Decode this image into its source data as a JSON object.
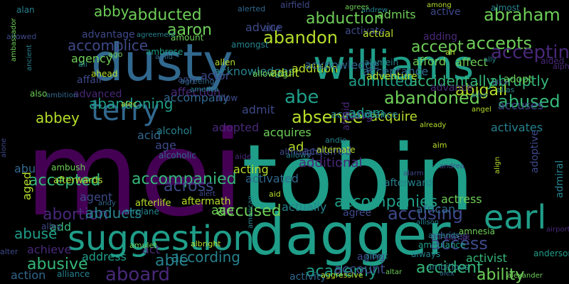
{
  "background": "#000000",
  "palette": {
    "p": "#440154",
    "i": "#482878",
    "b": "#3e4989",
    "c": "#31688e",
    "t": "#26828e",
    "g": "#1f9e89",
    "m": "#35b779",
    "y": "#6ece58",
    "l": "#b5de2b"
  },
  "words": [
    {
      "text": "mei",
      "c": "p"
    },
    {
      "text": "tobin",
      "c": "g"
    },
    {
      "text": "dusty",
      "c": "c"
    },
    {
      "text": "williams",
      "c": "g"
    },
    {
      "text": "dagger",
      "c": "g"
    },
    {
      "text": "suggestion",
      "c": "g"
    },
    {
      "text": "terry",
      "c": "c"
    },
    {
      "text": "earl",
      "c": "g"
    },
    {
      "text": "abducted",
      "c": "y"
    },
    {
      "text": "abduction",
      "c": "y"
    },
    {
      "text": "abraham",
      "c": "y"
    },
    {
      "text": "aaron",
      "c": "y"
    },
    {
      "text": "abandon",
      "c": "l"
    },
    {
      "text": "accepts",
      "c": "y"
    },
    {
      "text": "accepting",
      "c": "i"
    },
    {
      "text": "abe",
      "c": "g"
    },
    {
      "text": "absence",
      "c": "l"
    },
    {
      "text": "abandoned",
      "c": "y"
    },
    {
      "text": "abigail",
      "c": "l"
    },
    {
      "text": "abused",
      "c": "m"
    },
    {
      "text": "abbey",
      "c": "l"
    },
    {
      "text": "abruptly",
      "c": "m"
    },
    {
      "text": "accidentally",
      "c": "m"
    },
    {
      "text": "acquire",
      "c": "l"
    },
    {
      "text": "accompanies",
      "c": "g"
    },
    {
      "text": "accusing",
      "c": "b"
    },
    {
      "text": "accepted",
      "c": "m"
    },
    {
      "text": "abortion",
      "c": "i"
    },
    {
      "text": "accompanied",
      "c": "m"
    },
    {
      "text": "abandoning",
      "c": "g"
    },
    {
      "text": "abuse",
      "c": "g"
    },
    {
      "text": "abducts",
      "c": "t"
    },
    {
      "text": "accused",
      "c": "y"
    },
    {
      "text": "abusive",
      "c": "m"
    },
    {
      "text": "able",
      "c": "t"
    },
    {
      "text": "access",
      "c": "b"
    },
    {
      "text": "academy",
      "c": "g"
    },
    {
      "text": "aboard",
      "c": "i"
    },
    {
      "text": "accident",
      "c": "m"
    },
    {
      "text": "ability",
      "c": "y"
    },
    {
      "text": "according",
      "c": "t"
    },
    {
      "text": "abby",
      "c": "y"
    },
    {
      "text": "accept",
      "c": "y"
    },
    {
      "text": "acknowledges",
      "c": "t"
    },
    {
      "text": "abu",
      "c": "c"
    },
    {
      "text": "accomplice",
      "c": "b"
    },
    {
      "text": "accompany",
      "c": "c"
    },
    {
      "text": "acquires",
      "c": "y"
    },
    {
      "text": "across",
      "c": "b"
    },
    {
      "text": "acid",
      "c": "c"
    },
    {
      "text": "actress",
      "c": "y"
    },
    {
      "text": "addition",
      "c": "l"
    },
    {
      "text": "activates",
      "c": "t"
    },
    {
      "text": "activated",
      "c": "c"
    },
    {
      "text": "acting",
      "c": "l"
    },
    {
      "text": "acquired",
      "c": "b"
    },
    {
      "text": "accuses",
      "c": "b"
    },
    {
      "text": "adopted",
      "c": "i"
    },
    {
      "text": "additional",
      "c": "i"
    },
    {
      "text": "acknowledge",
      "c": "c"
    },
    {
      "text": "ad",
      "c": "l"
    },
    {
      "text": "admitted",
      "c": "g"
    },
    {
      "text": "actor",
      "c": "b"
    },
    {
      "text": "aang",
      "c": "i"
    },
    {
      "text": "adam",
      "c": "g"
    },
    {
      "text": "add",
      "c": "m"
    },
    {
      "text": "admit",
      "c": "b"
    },
    {
      "text": "achieve",
      "c": "i"
    },
    {
      "text": "action",
      "c": "c"
    },
    {
      "text": "account",
      "c": "b"
    },
    {
      "text": "address",
      "c": "g"
    },
    {
      "text": "activist",
      "c": "m"
    },
    {
      "text": "act",
      "c": "i"
    },
    {
      "text": "actually",
      "c": "t"
    },
    {
      "text": "ace",
      "c": "y"
    },
    {
      "text": "admits",
      "c": "y"
    },
    {
      "text": "active",
      "c": "b"
    },
    {
      "text": "activate",
      "c": "b"
    },
    {
      "text": "acceptance",
      "c": "c"
    },
    {
      "text": "adopt",
      "c": "y"
    },
    {
      "text": "affect",
      "c": "y"
    },
    {
      "text": "afford",
      "c": "y"
    },
    {
      "text": "advance",
      "c": "i"
    },
    {
      "text": "advice",
      "c": "b"
    },
    {
      "text": "actual",
      "c": "l"
    },
    {
      "text": "advantage",
      "c": "b"
    },
    {
      "text": "agency",
      "c": "y"
    },
    {
      "text": "adding",
      "c": "i"
    },
    {
      "text": "adult",
      "c": "l"
    },
    {
      "text": "adventure",
      "c": "l"
    },
    {
      "text": "affection",
      "c": "i"
    },
    {
      "text": "african",
      "c": "c"
    },
    {
      "text": "activity",
      "c": "c"
    },
    {
      "text": "acquaintance",
      "c": "t"
    },
    {
      "text": "afterward",
      "c": "t"
    },
    {
      "text": "admiral",
      "c": "t"
    },
    {
      "text": "adoptive",
      "c": "b"
    },
    {
      "text": "aged",
      "c": "l"
    },
    {
      "text": "agent",
      "c": "b"
    },
    {
      "text": "age",
      "c": "b"
    },
    {
      "text": "advises",
      "c": "b"
    },
    {
      "text": "aftermath",
      "c": "l"
    },
    {
      "text": "afterlife",
      "c": "l"
    },
    {
      "text": "afterwards",
      "c": "l"
    },
    {
      "text": "advanced",
      "c": "i"
    },
    {
      "text": "affair",
      "c": "b"
    },
    {
      "text": "afraid",
      "c": "i"
    },
    {
      "text": "aging",
      "c": "b"
    },
    {
      "text": "agree",
      "c": "b"
    },
    {
      "text": "ahead",
      "c": "l"
    },
    {
      "text": "alcoholic",
      "c": "c"
    },
    {
      "text": "alcohol",
      "c": "t"
    },
    {
      "text": "alice",
      "c": "b"
    },
    {
      "text": "alive",
      "c": "t"
    },
    {
      "text": "alan",
      "c": "t"
    },
    {
      "text": "alex",
      "c": "c"
    },
    {
      "text": "alamein",
      "c": "t"
    },
    {
      "text": "allen",
      "c": "l"
    },
    {
      "text": "allison",
      "c": "t"
    },
    {
      "text": "alley",
      "c": "b"
    },
    {
      "text": "allow",
      "c": "b"
    },
    {
      "text": "allowing",
      "c": "y"
    },
    {
      "text": "allowed",
      "c": "b"
    },
    {
      "text": "allows",
      "c": "t"
    },
    {
      "text": "allie",
      "c": "b"
    },
    {
      "text": "alliance",
      "c": "t"
    },
    {
      "text": "almost",
      "c": "t"
    },
    {
      "text": "alone",
      "c": "b"
    },
    {
      "text": "already",
      "c": "l"
    },
    {
      "text": "also",
      "c": "y"
    },
    {
      "text": "alter",
      "c": "b"
    },
    {
      "text": "alternate",
      "c": "l"
    },
    {
      "text": "although",
      "c": "b"
    },
    {
      "text": "always",
      "c": "t"
    },
    {
      "text": "ambitious",
      "c": "t"
    },
    {
      "text": "ambrose",
      "c": "g"
    },
    {
      "text": "ambulance",
      "c": "g"
    },
    {
      "text": "ambush",
      "c": "y"
    },
    {
      "text": "amnesia",
      "c": "y"
    },
    {
      "text": "among",
      "c": "l"
    },
    {
      "text": "amongst",
      "c": "t"
    },
    {
      "text": "amount",
      "c": "y"
    },
    {
      "text": "amulet",
      "c": "y"
    },
    {
      "text": "amy",
      "c": "b"
    },
    {
      "text": "andrea",
      "c": "b"
    },
    {
      "text": "andrew",
      "c": "t"
    },
    {
      "text": "andy",
      "c": "c"
    },
    {
      "text": "andie",
      "c": "t"
    },
    {
      "text": "angel",
      "c": "l"
    },
    {
      "text": "anderson",
      "c": "g"
    },
    {
      "text": "align",
      "c": "l"
    },
    {
      "text": "aim",
      "c": "l"
    },
    {
      "text": "aid",
      "c": "l"
    },
    {
      "text": "aide",
      "c": "i"
    },
    {
      "text": "aided",
      "c": "i"
    },
    {
      "text": "aircraft",
      "c": "i"
    },
    {
      "text": "airplane",
      "c": "t"
    },
    {
      "text": "airport",
      "c": "i"
    },
    {
      "text": "airfield",
      "c": "b"
    },
    {
      "text": "alarm",
      "c": "b"
    },
    {
      "text": "albert",
      "c": "t"
    },
    {
      "text": "albright",
      "c": "l"
    },
    {
      "text": "alec",
      "c": "l"
    },
    {
      "text": "alert",
      "c": "b"
    },
    {
      "text": "alerted",
      "c": "c"
    },
    {
      "text": "alexander",
      "c": "y"
    },
    {
      "text": "ally",
      "c": "t"
    },
    {
      "text": "alpha",
      "c": "i"
    },
    {
      "text": "alias",
      "c": "t"
    },
    {
      "text": "ali",
      "c": "t"
    },
    {
      "text": "ah",
      "c": "l"
    },
    {
      "text": "agrees",
      "c": "y"
    },
    {
      "text": "agreement",
      "c": "t"
    },
    {
      "text": "agreeing",
      "c": "c"
    },
    {
      "text": "aggressive",
      "c": "l"
    },
    {
      "text": "ago",
      "c": "y"
    },
    {
      "text": "altar",
      "c": "y"
    },
    {
      "text": "amid",
      "c": "c"
    },
    {
      "text": "america",
      "c": "t"
    },
    {
      "text": "american",
      "c": "t"
    },
    {
      "text": "ambassador",
      "c": "y"
    },
    {
      "text": "ambition",
      "c": "c"
    },
    {
      "text": "amends",
      "c": "t"
    },
    {
      "text": "ancient",
      "c": "t"
    },
    {
      "text": "android",
      "c": "t"
    }
  ]
}
